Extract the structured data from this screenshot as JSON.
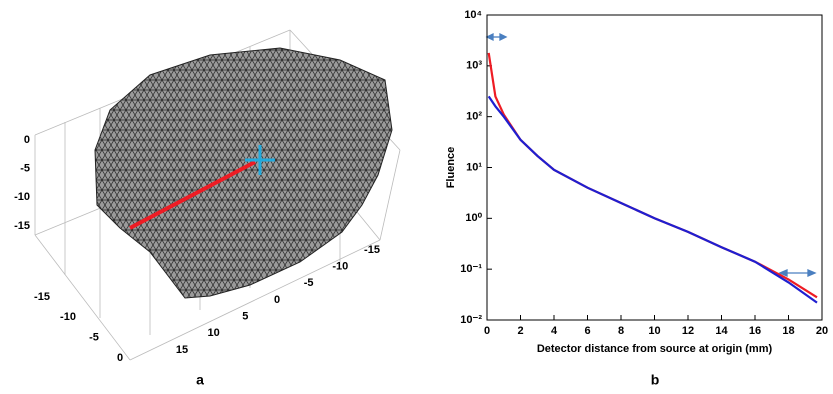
{
  "chart_data": [
    {
      "type": "mesh3d",
      "panel_label": "a",
      "zticks": [
        0,
        -5,
        -10,
        -15
      ],
      "xticks": [
        -15,
        -10,
        -5,
        0
      ],
      "yticks": [
        15,
        10,
        5,
        0,
        -5,
        -10,
        -15
      ]
    },
    {
      "type": "line",
      "panel_label": "b",
      "x_label": "Detector distance from source at origin (mm)",
      "y_label": "Fluence",
      "x": [
        0.1,
        0.5,
        1,
        2,
        3,
        4,
        6,
        8,
        10,
        12,
        14,
        16,
        18,
        19.7
      ],
      "series": [
        {
          "color": "#ee1c24",
          "values": [
            1800,
            250,
            110,
            35,
            17,
            9,
            4,
            2,
            1,
            0.54,
            0.27,
            0.14,
            0.063,
            0.028
          ]
        },
        {
          "color": "#1f1fd0",
          "values": [
            250,
            160,
            100,
            35,
            17,
            9,
            4,
            2,
            1,
            0.54,
            0.27,
            0.14,
            0.055,
            0.022
          ]
        }
      ],
      "xlim": [
        0,
        20
      ],
      "xticks": [
        0,
        2,
        4,
        6,
        8,
        10,
        12,
        14,
        16,
        18,
        20
      ],
      "ylim": [
        0.01,
        10000
      ],
      "log_y": true,
      "yticks": [
        {
          "value": 0.01,
          "label": "10⁻²"
        },
        {
          "value": 0.1,
          "label": "10⁻¹"
        },
        {
          "value": 1,
          "label": "10⁰"
        },
        {
          "value": 10,
          "label": "10¹"
        },
        {
          "value": 100,
          "label": "10²"
        },
        {
          "value": 1000,
          "label": "10³"
        },
        {
          "value": 10000,
          "label": "10⁴"
        }
      ]
    }
  ]
}
